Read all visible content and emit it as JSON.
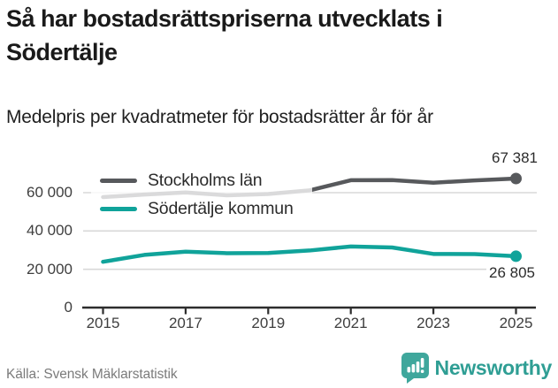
{
  "header": {
    "title": "Så har bostadsrättspriserna utvecklats i Södertälje",
    "subtitle": "Medelpris per kvadratmeter för bostadsrätter år för år"
  },
  "chart_data": {
    "type": "line",
    "x": [
      2015,
      2016,
      2017,
      2018,
      2019,
      2020,
      2021,
      2022,
      2023,
      2024,
      2025
    ],
    "series": [
      {
        "name": "Stockholms län",
        "color": "#57595c",
        "values": [
          57700,
          59000,
          60100,
          58600,
          59300,
          61200,
          66500,
          66600,
          65200,
          66400,
          67381
        ],
        "end_label": "67 381",
        "end_label_side": "above"
      },
      {
        "name": "Södertälje kommun",
        "color": "#10a39a",
        "values": [
          23900,
          27500,
          29200,
          28400,
          28500,
          29800,
          31900,
          31400,
          28000,
          27900,
          26805
        ],
        "end_label": "26 805",
        "end_label_side": "below"
      }
    ],
    "xticks": {
      "values": [
        2015,
        2017,
        2019,
        2021,
        2023,
        2025
      ],
      "labels": [
        "2015",
        "2017",
        "2019",
        "2021",
        "2023",
        "2025"
      ]
    },
    "yticks": {
      "values": [
        0,
        20000,
        40000,
        60000
      ],
      "labels": [
        "0",
        "20 000",
        "40 000",
        "60 000"
      ]
    },
    "ylim": [
      0,
      72000
    ],
    "xlabel": "",
    "ylabel": "",
    "grid": true,
    "legend_position": "inside-top-left",
    "title": "Så har bostadsrättspriserna utvecklats i Södertälje"
  },
  "footer": {
    "source": "Källa: Svensk Mäklarstatistik",
    "brand": "Newsworthy"
  },
  "colors": {
    "grid": "#d8d8d8",
    "axis": "#2d2d2d",
    "series_gray": "#57595c",
    "series_teal": "#10a39a",
    "legend_overlay": "rgba(255,255,255,0.78)",
    "brand_teal": "#3fa79c",
    "brand_text_teal": "#2f9e94"
  }
}
